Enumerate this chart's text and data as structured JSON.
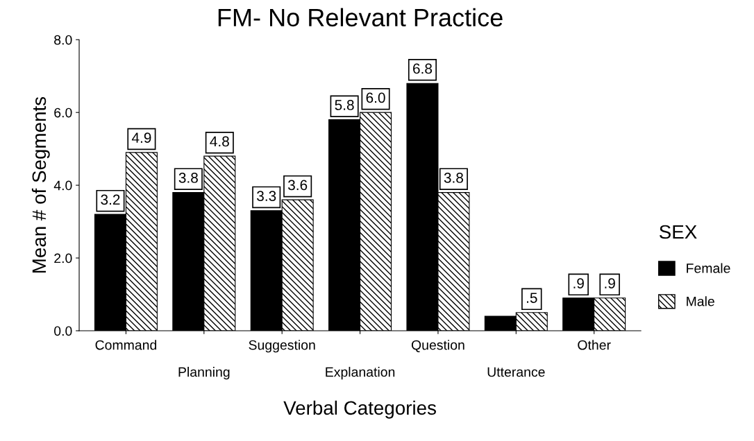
{
  "chart_data": {
    "type": "bar",
    "title": "FM- No Relevant Practice",
    "xlabel": "Verbal Categories",
    "ylabel": "Mean # of Segments",
    "legend_title": "SEX",
    "categories": [
      "Command",
      "Planning",
      "Suggestion",
      "Explanation",
      "Question",
      "Utterance",
      "Other"
    ],
    "series": [
      {
        "name": "Female",
        "color": "#000000",
        "values": [
          3.2,
          3.8,
          3.3,
          5.8,
          6.8,
          0.4,
          0.9
        ],
        "value_labels": [
          "3.2",
          "3.8",
          "3.3",
          "5.8",
          "6.8",
          null,
          ".9"
        ]
      },
      {
        "name": "Male",
        "color": "#000000",
        "values": [
          4.9,
          4.8,
          3.6,
          6.0,
          3.8,
          0.5,
          0.9
        ],
        "value_labels": [
          "4.9",
          "4.8",
          "3.6",
          "6.0",
          "3.8",
          ".5",
          ".9"
        ]
      }
    ],
    "ylim": [
      0,
      8
    ],
    "yticks": [
      {
        "value": 0,
        "label": "0.0"
      },
      {
        "value": 2,
        "label": "2.0"
      },
      {
        "value": 4,
        "label": "4.0"
      },
      {
        "value": 6,
        "label": "6.0"
      },
      {
        "value": 8,
        "label": "8.0"
      }
    ],
    "grid": false,
    "legend": "right"
  }
}
